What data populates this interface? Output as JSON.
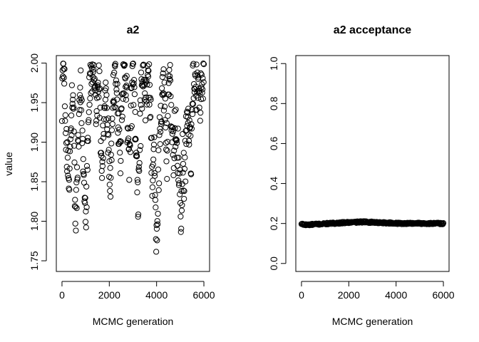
{
  "colors": {
    "background": "#ffffff",
    "ink": "#000000"
  },
  "chart_data": [
    {
      "type": "scatter",
      "title": "a2",
      "xlabel": "MCMC generation",
      "ylabel": "value",
      "xlim": [
        -240,
        6240
      ],
      "ylim": [
        1.7365,
        2.0095
      ],
      "xticks": [
        0,
        2000,
        4000,
        6000
      ],
      "yticks": [
        1.75,
        1.8,
        1.85,
        1.9,
        1.95,
        2.0
      ],
      "xtick_labels": [
        "0",
        "2000",
        "4000",
        "6000"
      ],
      "ytick_labels": [
        "1.75",
        "1.80",
        "1.85",
        "1.90",
        "1.95",
        "2.00"
      ],
      "marker": "open-circle",
      "n_generations": 6000,
      "trace_keypoints": {
        "x": [
          0,
          60,
          150,
          230,
          300,
          360,
          430,
          500,
          560,
          620,
          700,
          780,
          840,
          900,
          960,
          1020,
          1080,
          1150,
          1230,
          1300,
          1380,
          1460,
          1540,
          1600,
          1680,
          1740,
          1820,
          1900,
          1960,
          2020,
          2100,
          2180,
          2250,
          2330,
          2400,
          2470,
          2540,
          2620,
          2700,
          2780,
          2850,
          2920,
          3000,
          3080,
          3150,
          3220,
          3300,
          3380,
          3450,
          3530,
          3600,
          3680,
          3760,
          3820,
          3880,
          3940,
          4000,
          4060,
          4120,
          4200,
          4280,
          4360,
          4440,
          4500,
          4560,
          4640,
          4720,
          4800,
          4880,
          4960,
          5040,
          5100,
          5160,
          5230,
          5300,
          5370,
          5440,
          5520,
          5600,
          5680,
          5760,
          5840,
          5920,
          6000
        ],
        "y": [
          1.97,
          1.99,
          1.93,
          1.87,
          1.84,
          1.9,
          1.95,
          1.92,
          1.8,
          1.83,
          1.91,
          1.96,
          1.93,
          1.87,
          1.84,
          1.82,
          1.9,
          1.96,
          1.99,
          1.98,
          1.97,
          1.93,
          1.99,
          1.95,
          1.87,
          1.9,
          1.96,
          1.94,
          1.89,
          1.83,
          1.9,
          1.96,
          1.99,
          1.95,
          1.91,
          1.87,
          1.95,
          1.99,
          1.98,
          1.92,
          1.88,
          1.94,
          1.99,
          1.93,
          1.86,
          1.82,
          1.91,
          1.97,
          1.99,
          1.94,
          1.97,
          1.99,
          1.92,
          1.85,
          1.9,
          1.82,
          1.76,
          1.83,
          1.9,
          1.95,
          1.99,
          1.93,
          1.88,
          1.97,
          1.99,
          1.91,
          1.86,
          1.93,
          1.9,
          1.85,
          1.81,
          1.87,
          1.84,
          1.9,
          1.94,
          1.91,
          1.88,
          1.96,
          1.99,
          1.97,
          1.99,
          1.95,
          1.98,
          1.99
        ]
      }
    },
    {
      "type": "scatter",
      "title": "a2 acceptance",
      "xlabel": "MCMC generation",
      "ylabel": "",
      "xlim": [
        -240,
        6240
      ],
      "ylim": [
        -0.04,
        1.04
      ],
      "xticks": [
        0,
        2000,
        4000,
        6000
      ],
      "yticks": [
        0.0,
        0.2,
        0.4,
        0.6,
        0.8,
        1.0
      ],
      "xtick_labels": [
        "0",
        "2000",
        "4000",
        "6000"
      ],
      "ytick_labels": [
        "0.0",
        "0.2",
        "0.4",
        "0.6",
        "0.8",
        "1.0"
      ],
      "marker": "open-circle",
      "n_generations": 6000,
      "trace_keypoints": {
        "x": [
          0,
          200,
          600,
          1200,
          2000,
          2600,
          3000,
          3600,
          4200,
          4800,
          5400,
          6000
        ],
        "y": [
          0.197,
          0.193,
          0.196,
          0.2,
          0.205,
          0.208,
          0.206,
          0.203,
          0.2,
          0.201,
          0.2,
          0.2
        ]
      }
    }
  ]
}
